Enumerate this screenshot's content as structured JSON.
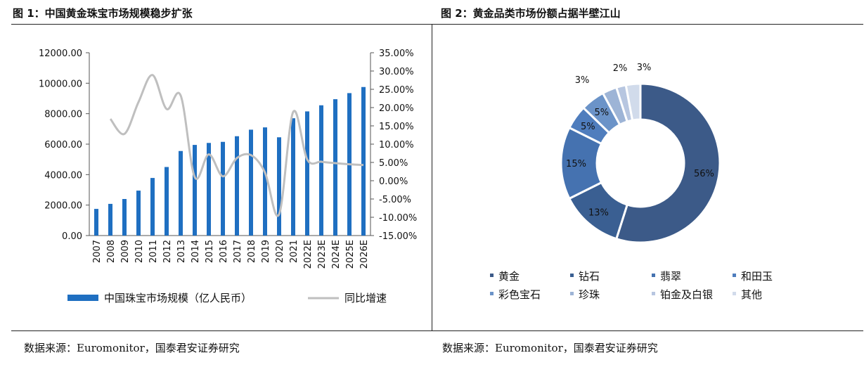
{
  "figures": [
    {
      "title": "图 1：中国黄金珠宝市场规模稳步扩张",
      "source": "数据来源：Euromonitor，国泰君安证券研究"
    },
    {
      "title": "图 2：黄金品类市场份额占据半壁江山",
      "source": "数据来源：Euromonitor，国泰君安证券研究"
    }
  ],
  "chart_data": [
    {
      "type": "bar",
      "title": "",
      "categories": [
        "2007",
        "2008",
        "2009",
        "2010",
        "2011",
        "2012",
        "2013",
        "2014",
        "2015",
        "2016",
        "2017",
        "2018",
        "2019",
        "2020",
        "2021",
        "2022E",
        "2023E",
        "2024E",
        "2025E",
        "2026E"
      ],
      "series": [
        {
          "name": "中国珠宝市场规模（亿人民币）",
          "type": "bar",
          "axis": "left",
          "color": "#1f6fc1",
          "values": [
            1750,
            2080,
            2400,
            2950,
            3780,
            4500,
            5550,
            5950,
            6080,
            6150,
            6520,
            6950,
            7100,
            6450,
            7700,
            8150,
            8550,
            8950,
            9350,
            9750
          ]
        },
        {
          "name": "同比增速",
          "type": "line",
          "axis": "right",
          "color": "#bfbfbf",
          "values": [
            null,
            16.9,
            12.8,
            21.5,
            28.9,
            19.6,
            23.3,
            1.0,
            7.2,
            1.2,
            6.2,
            7.0,
            2.2,
            -9.2,
            18.8,
            5.8,
            5.2,
            4.8,
            4.5,
            4.3
          ]
        }
      ],
      "yleft": {
        "min": 0,
        "max": 12000,
        "step": 2000,
        "ticks": [
          "0.00",
          "2000.00",
          "4000.00",
          "6000.00",
          "8000.00",
          "10000.00",
          "12000.00"
        ]
      },
      "yright": {
        "min": -15,
        "max": 35,
        "step": 5,
        "ticks": [
          "-15.00%",
          "-10.00%",
          "-5.00%",
          "0.00%",
          "5.00%",
          "10.00%",
          "15.00%",
          "20.00%",
          "25.00%",
          "30.00%",
          "35.00%"
        ]
      },
      "legend_position": "bottom"
    },
    {
      "type": "pie",
      "title": "",
      "donut": true,
      "slices": [
        {
          "name": "黄金",
          "value": 56,
          "label": "56%",
          "color": "#3c5a88"
        },
        {
          "name": "钻石",
          "value": 13,
          "label": "13%",
          "color": "#3a5f92"
        },
        {
          "name": "翡翠",
          "value": 15,
          "label": "15%",
          "color": "#4572b0"
        },
        {
          "name": "和田玉",
          "value": 5,
          "label": "5%",
          "color": "#4f7dbd"
        },
        {
          "name": "彩色宝石",
          "value": 5,
          "label": "5%",
          "color": "#6b93c8"
        },
        {
          "name": "珍珠",
          "value": 3,
          "label": "3%",
          "color": "#9db4d6"
        },
        {
          "name": "铂金及白银",
          "value": 2,
          "label": "2%",
          "color": "#b7c6e0"
        },
        {
          "name": "其他",
          "value": 3,
          "label": "3%",
          "color": "#d1dbeb"
        }
      ],
      "legend_position": "bottom"
    }
  ]
}
